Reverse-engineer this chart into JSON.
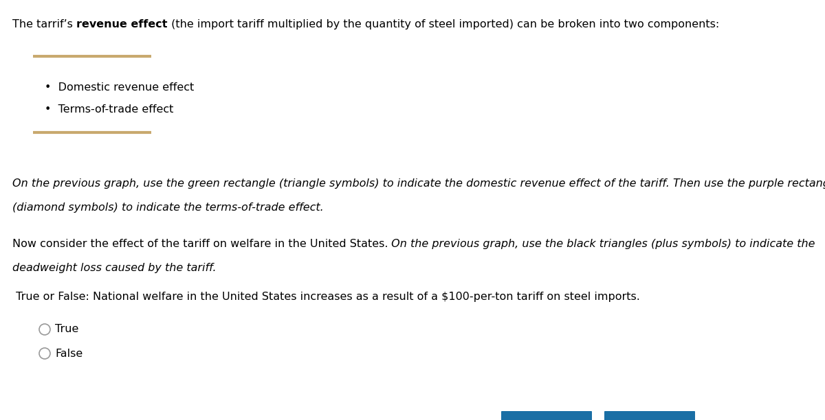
{
  "bg_color": "#FFFFFF",
  "line_color": "#C8A96E",
  "button_color": "#1A6FA5",
  "font_size": 11.5,
  "title_normal1": "The tarrif’s ",
  "title_bold": "revenue effect",
  "title_normal2": " (the import tariff multiplied by the quantity of steel imported) can be broken into two components:",
  "bullet1": "•  Domestic revenue effect",
  "bullet2": "•  Terms-of-trade effect",
  "italic1_line1": "On the previous graph, use the green rectangle (triangle symbols) to indicate the domestic revenue effect of the tariff. Then use the purple rectangle",
  "italic1_line2": "(diamond symbols) to indicate the terms-of-trade effect.",
  "normal2": "Now consider the effect of the tariff on welfare in the United States.",
  "italic2_inline": " On the previous graph, use the black triangles (plus symbols) to indicate the",
  "italic2_line2": "deadweight loss caused by the tariff.",
  "question": " True or False: National welfare in the United States increases as a result of a $100-per-ton tariff on steel imports.",
  "opt_true": "True",
  "opt_false": "False"
}
